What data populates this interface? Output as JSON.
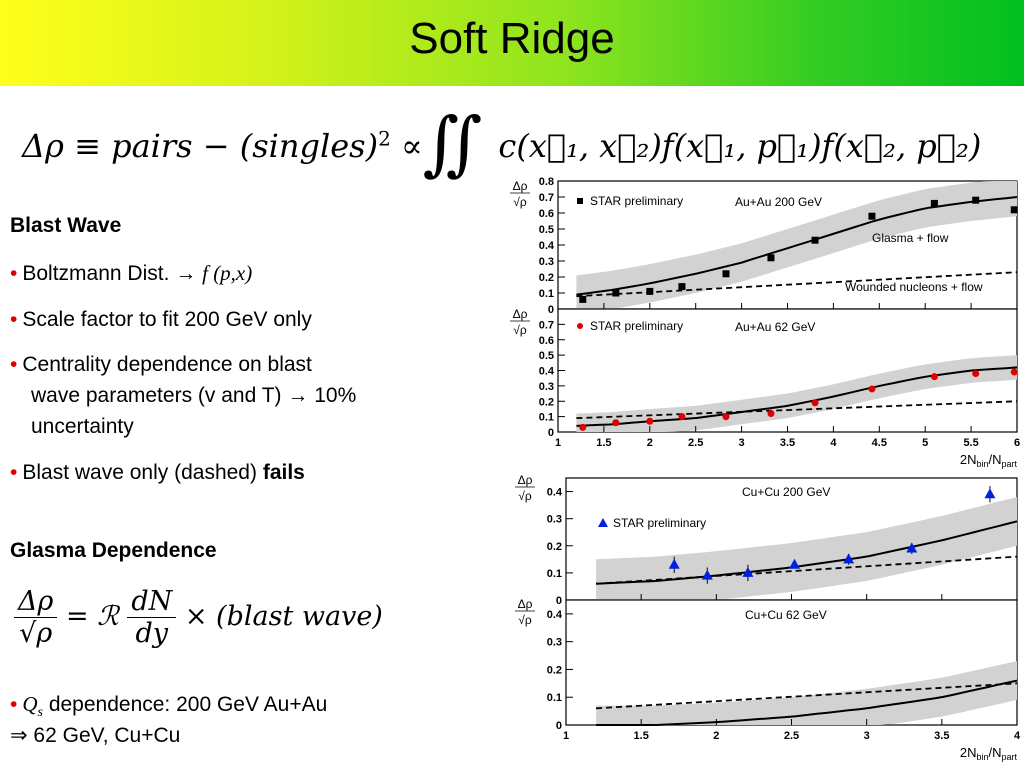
{
  "slide": {
    "title": "Soft Ridge",
    "equation": {
      "lhs": "Δρ ≡ pairs − (singles)",
      "power": "2",
      "prop": "∝",
      "integral": "∬",
      "rhs": "c(x⃗₁, x⃗₂)f(x⃗₁, p⃗₁)f(x⃗₂, p⃗₂)"
    },
    "blast_wave": {
      "heading": "Blast Wave",
      "bullet1_text": "Boltzmann Dist.",
      "bullet1_arrow": "→",
      "bullet1_func": "f (p,x)",
      "bullet2": "Scale factor to fit 200 GeV only",
      "bullet3_line1": "Centrality dependence on blast",
      "bullet3_line2": "wave parameters (v and T) → 10%",
      "bullet3_line3": "uncertainty",
      "bullet4_text": "Blast wave only (dashed) ",
      "bullet4_bold": "fails"
    },
    "glasma": {
      "heading": "Glasma Dependence",
      "eq_num": "Δρ",
      "eq_den": "√ρ",
      "eq_eq": "= ℛ",
      "eq_frac_num": "dN",
      "eq_frac_den": "dy",
      "eq_tail": "× (blast wave)",
      "bullet_qs": "Q",
      "bullet_qs_sub": "s",
      "bullet_line1": " dependence: 200 GeV Au+Au",
      "bullet_line2": "⇒ 62 GeV, Cu+Cu"
    }
  },
  "chart_data": [
    {
      "type": "scatter",
      "system": "Au+Au 200 GeV",
      "legend": "STAR preliminary",
      "marker": "square",
      "marker_color": "#000000",
      "ylabel": "Δρ/√ρ",
      "xlabel": "2N_bin/N_part",
      "xlim": [
        1,
        6
      ],
      "ylim": [
        0,
        0.8
      ],
      "yticks": [
        "0",
        "0.1",
        "0.2",
        "0.3",
        "0.4",
        "0.5",
        "0.6",
        "0.7",
        "0.8"
      ],
      "x": [
        1.27,
        1.63,
        2.0,
        2.35,
        2.83,
        3.32,
        3.8,
        4.42,
        5.1,
        5.55,
        5.97
      ],
      "y": [
        0.06,
        0.1,
        0.11,
        0.14,
        0.22,
        0.32,
        0.43,
        0.58,
        0.66,
        0.68,
        0.62
      ],
      "annotations": [
        "Glasma + flow",
        "Wounded nucleons + flow"
      ],
      "glasma_curve": {
        "x": [
          1.2,
          1.6,
          2.0,
          2.5,
          3.0,
          3.5,
          4.0,
          4.5,
          5.0,
          5.5,
          6.0
        ],
        "y": [
          0.09,
          0.12,
          0.16,
          0.22,
          0.29,
          0.38,
          0.47,
          0.56,
          0.63,
          0.67,
          0.7
        ]
      },
      "band_halfwidth": 0.12,
      "wounded_curve": {
        "x": [
          1.2,
          6.0
        ],
        "y": [
          0.08,
          0.23
        ]
      }
    },
    {
      "type": "scatter",
      "system": "Au+Au 62 GeV",
      "legend": "STAR preliminary",
      "marker": "circle",
      "marker_color": "#e00000",
      "ylabel": "Δρ/√ρ",
      "xlabel": "2N_bin/N_part",
      "xlim": [
        1,
        6
      ],
      "ylim": [
        0,
        0.8
      ],
      "yticks": [
        "0",
        "0.1",
        "0.2",
        "0.3",
        "0.4",
        "0.5",
        "0.6",
        "0.7"
      ],
      "xticks": [
        "1",
        "1.5",
        "2",
        "2.5",
        "3",
        "3.5",
        "4",
        "4.5",
        "5",
        "5.5",
        "6"
      ],
      "x": [
        1.27,
        1.63,
        2.0,
        2.35,
        2.83,
        3.32,
        3.8,
        4.42,
        5.1,
        5.55,
        5.97
      ],
      "y": [
        0.03,
        0.06,
        0.07,
        0.1,
        0.1,
        0.12,
        0.19,
        0.28,
        0.36,
        0.38,
        0.39
      ],
      "glasma_curve": {
        "x": [
          1.2,
          1.6,
          2.0,
          2.5,
          3.0,
          3.5,
          4.0,
          4.5,
          5.0,
          5.5,
          6.0
        ],
        "y": [
          0.04,
          0.05,
          0.07,
          0.09,
          0.13,
          0.17,
          0.23,
          0.3,
          0.36,
          0.4,
          0.42
        ]
      },
      "band_halfwidth": 0.08,
      "wounded_curve": {
        "x": [
          1.2,
          6.0
        ],
        "y": [
          0.09,
          0.2
        ]
      }
    },
    {
      "type": "scatter",
      "system": "Cu+Cu 200 GeV",
      "legend": "STAR preliminary",
      "marker": "triangle",
      "marker_color": "#0022dd",
      "ylabel": "Δρ/√ρ",
      "xlabel": "2N_bin/N_part",
      "xlim": [
        1,
        4
      ],
      "ylim": [
        0,
        0.45
      ],
      "yticks": [
        "0",
        "0.1",
        "0.2",
        "0.3",
        "0.4"
      ],
      "x": [
        1.72,
        1.94,
        2.21,
        2.52,
        2.88,
        3.3,
        3.82
      ],
      "y": [
        0.13,
        0.09,
        0.1,
        0.13,
        0.15,
        0.19,
        0.39
      ],
      "err": [
        0.03,
        0.03,
        0.03,
        0.01,
        0.02,
        0.02,
        0.03
      ],
      "glasma_curve": {
        "x": [
          1.2,
          1.6,
          2.0,
          2.5,
          3.0,
          3.5,
          4.0
        ],
        "y": [
          0.06,
          0.07,
          0.09,
          0.12,
          0.16,
          0.22,
          0.29
        ]
      },
      "band_halfwidth": 0.09,
      "wounded_curve": {
        "x": [
          1.2,
          4.0
        ],
        "y": [
          0.06,
          0.16
        ]
      }
    },
    {
      "type": "line",
      "system": "Cu+Cu 62 GeV",
      "ylabel": "Δρ/√ρ",
      "xlabel": "2N_bin/N_part",
      "xlim": [
        1,
        4
      ],
      "ylim": [
        0,
        0.45
      ],
      "yticks": [
        "0",
        "0.1",
        "0.2",
        "0.3",
        "0.4"
      ],
      "xticks": [
        "1",
        "1.5",
        "2",
        "2.5",
        "3",
        "3.5",
        "4"
      ],
      "glasma_curve": {
        "x": [
          1.2,
          1.6,
          2.0,
          2.5,
          3.0,
          3.5,
          4.0
        ],
        "y": [
          0.0,
          0.0,
          0.01,
          0.03,
          0.06,
          0.1,
          0.16
        ]
      },
      "band_halfwidth": 0.07,
      "wounded_curve": {
        "x": [
          1.2,
          4.0
        ],
        "y": [
          0.06,
          0.15
        ]
      }
    }
  ]
}
